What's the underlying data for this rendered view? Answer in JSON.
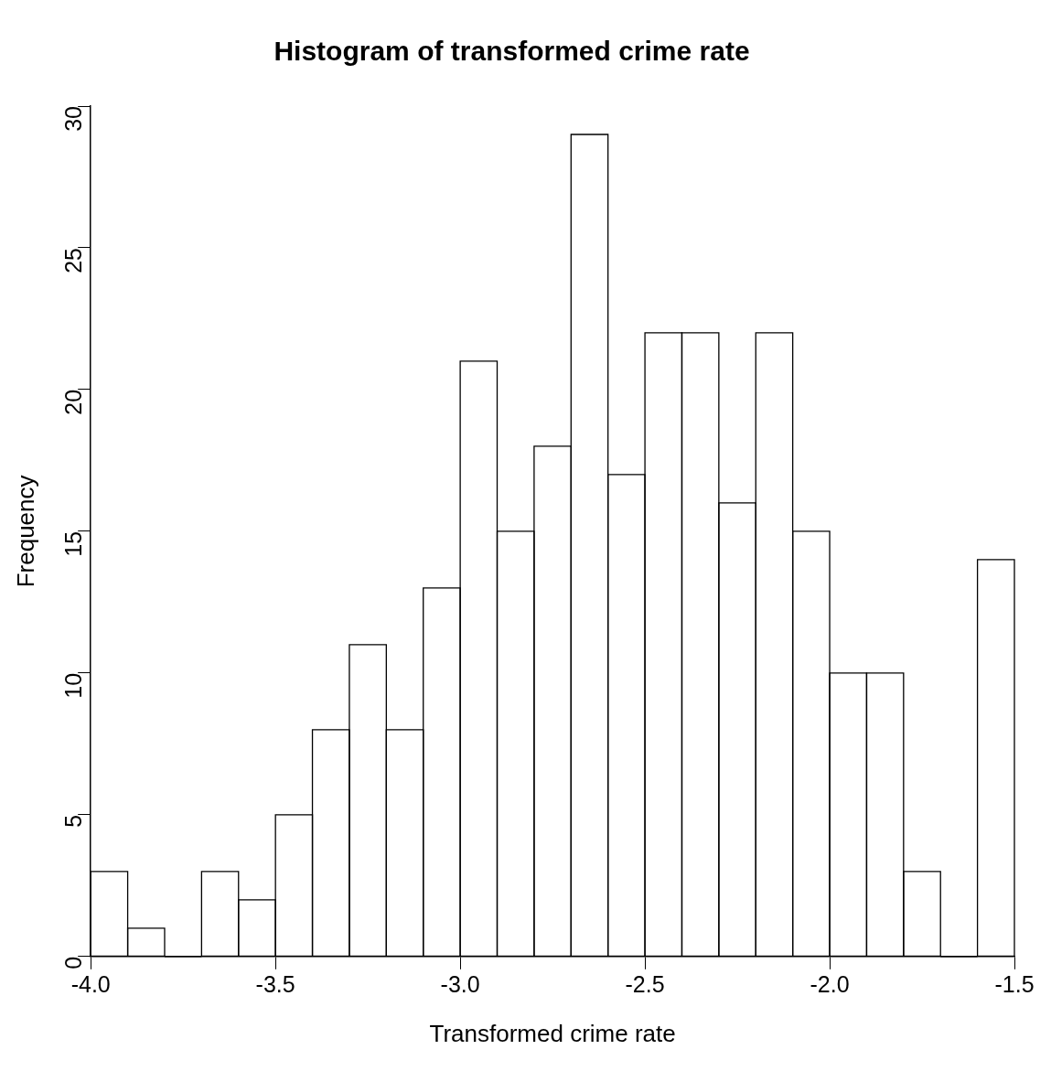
{
  "chart_data": {
    "type": "histogram",
    "title": "Histogram of transformed crime rate",
    "xlabel": "Transformed crime rate",
    "ylabel": "Frequency",
    "bins": [
      -4.0,
      -3.9,
      -3.8,
      -3.7,
      -3.6,
      -3.5,
      -3.4,
      -3.3,
      -3.2,
      -3.1,
      -3.0,
      -2.9,
      -2.8,
      -2.7,
      -2.6,
      -2.5,
      -2.4,
      -2.3,
      -2.2,
      -2.1,
      -2.0,
      -1.9,
      -1.8,
      -1.7,
      -1.6,
      -1.5
    ],
    "values": [
      3,
      1,
      0,
      3,
      2,
      5,
      8,
      11,
      8,
      13,
      21,
      15,
      18,
      29,
      17,
      22,
      22,
      16,
      22,
      15,
      10,
      10,
      3,
      0,
      14
    ],
    "color": "#000000",
    "xlim": [
      -4.0,
      -1.5
    ],
    "xticks": [
      {
        "value": -4.0,
        "label": "-4.0"
      },
      {
        "value": -3.5,
        "label": "-3.5"
      },
      {
        "value": -3.0,
        "label": "-3.0"
      },
      {
        "value": -2.5,
        "label": "-2.5"
      },
      {
        "value": -2.0,
        "label": "-2.0"
      },
      {
        "value": -1.5,
        "label": "-1.5"
      }
    ],
    "ylim": [
      0,
      30
    ],
    "yticks": [
      0,
      5,
      10,
      15,
      20,
      25,
      30
    ],
    "grid": false,
    "legend": false
  }
}
